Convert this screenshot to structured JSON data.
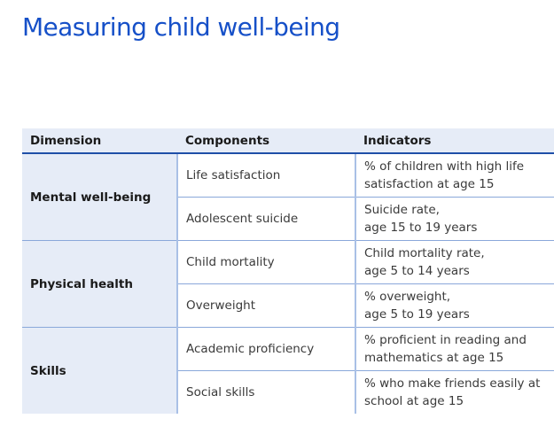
{
  "title": "Measuring child well-being",
  "table": {
    "headers": [
      "Dimension",
      "Components",
      "Indicators"
    ],
    "groups": [
      {
        "dimension": "Mental well-being",
        "rows": [
          {
            "component": "Life satisfaction",
            "indicator_line1": "% of children with high life",
            "indicator_line2": "satisfaction at age 15"
          },
          {
            "component": "Adolescent suicide",
            "indicator_line1": "Suicide rate,",
            "indicator_line2": "age 15 to 19 years"
          }
        ]
      },
      {
        "dimension": "Physical health",
        "rows": [
          {
            "component": "Child mortality",
            "indicator_line1": "Child mortality rate,",
            "indicator_line2": "age 5 to 14 years"
          },
          {
            "component": "Overweight",
            "indicator_line1": "% overweight,",
            "indicator_line2": "age 5 to 19 years"
          }
        ]
      },
      {
        "dimension": "Skills",
        "rows": [
          {
            "component": "Academic proficiency",
            "indicator_line1": "% proficient in reading and",
            "indicator_line2": "mathematics at age 15"
          },
          {
            "component": "Social skills",
            "indicator_line1": "% who make friends easily at",
            "indicator_line2": "school at age 15"
          }
        ]
      }
    ]
  },
  "colors": {
    "title": "#1650c8",
    "header_rule": "#1f4fa8",
    "dimension_bg": "#e6ecf7",
    "grid_line": "#8aa8da"
  }
}
